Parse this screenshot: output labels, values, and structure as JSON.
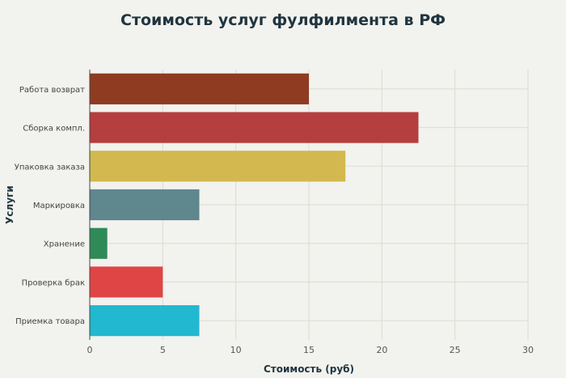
{
  "chart_data": {
    "type": "bar",
    "orientation": "horizontal",
    "title": "Стоимость услуг фулфилмента в РФ",
    "xlabel": "Стоимость (руб)",
    "ylabel": "Услуги",
    "xlim": [
      0,
      30
    ],
    "xticks": [
      0,
      5,
      10,
      15,
      20,
      25,
      30
    ],
    "grid": true,
    "categories": [
      "Работа возврат",
      "Сборка компл.",
      "Упаковка заказа",
      "Маркировка",
      "Хранение",
      "Проверка брак",
      "Приемка товара"
    ],
    "values": [
      15,
      22.5,
      17.5,
      7.5,
      1.2,
      5,
      7.5
    ],
    "colors": [
      "#8e3b22",
      "#b53e3e",
      "#d2b84f",
      "#5f878e",
      "#2e8a57",
      "#df4545",
      "#21b8d0"
    ]
  }
}
